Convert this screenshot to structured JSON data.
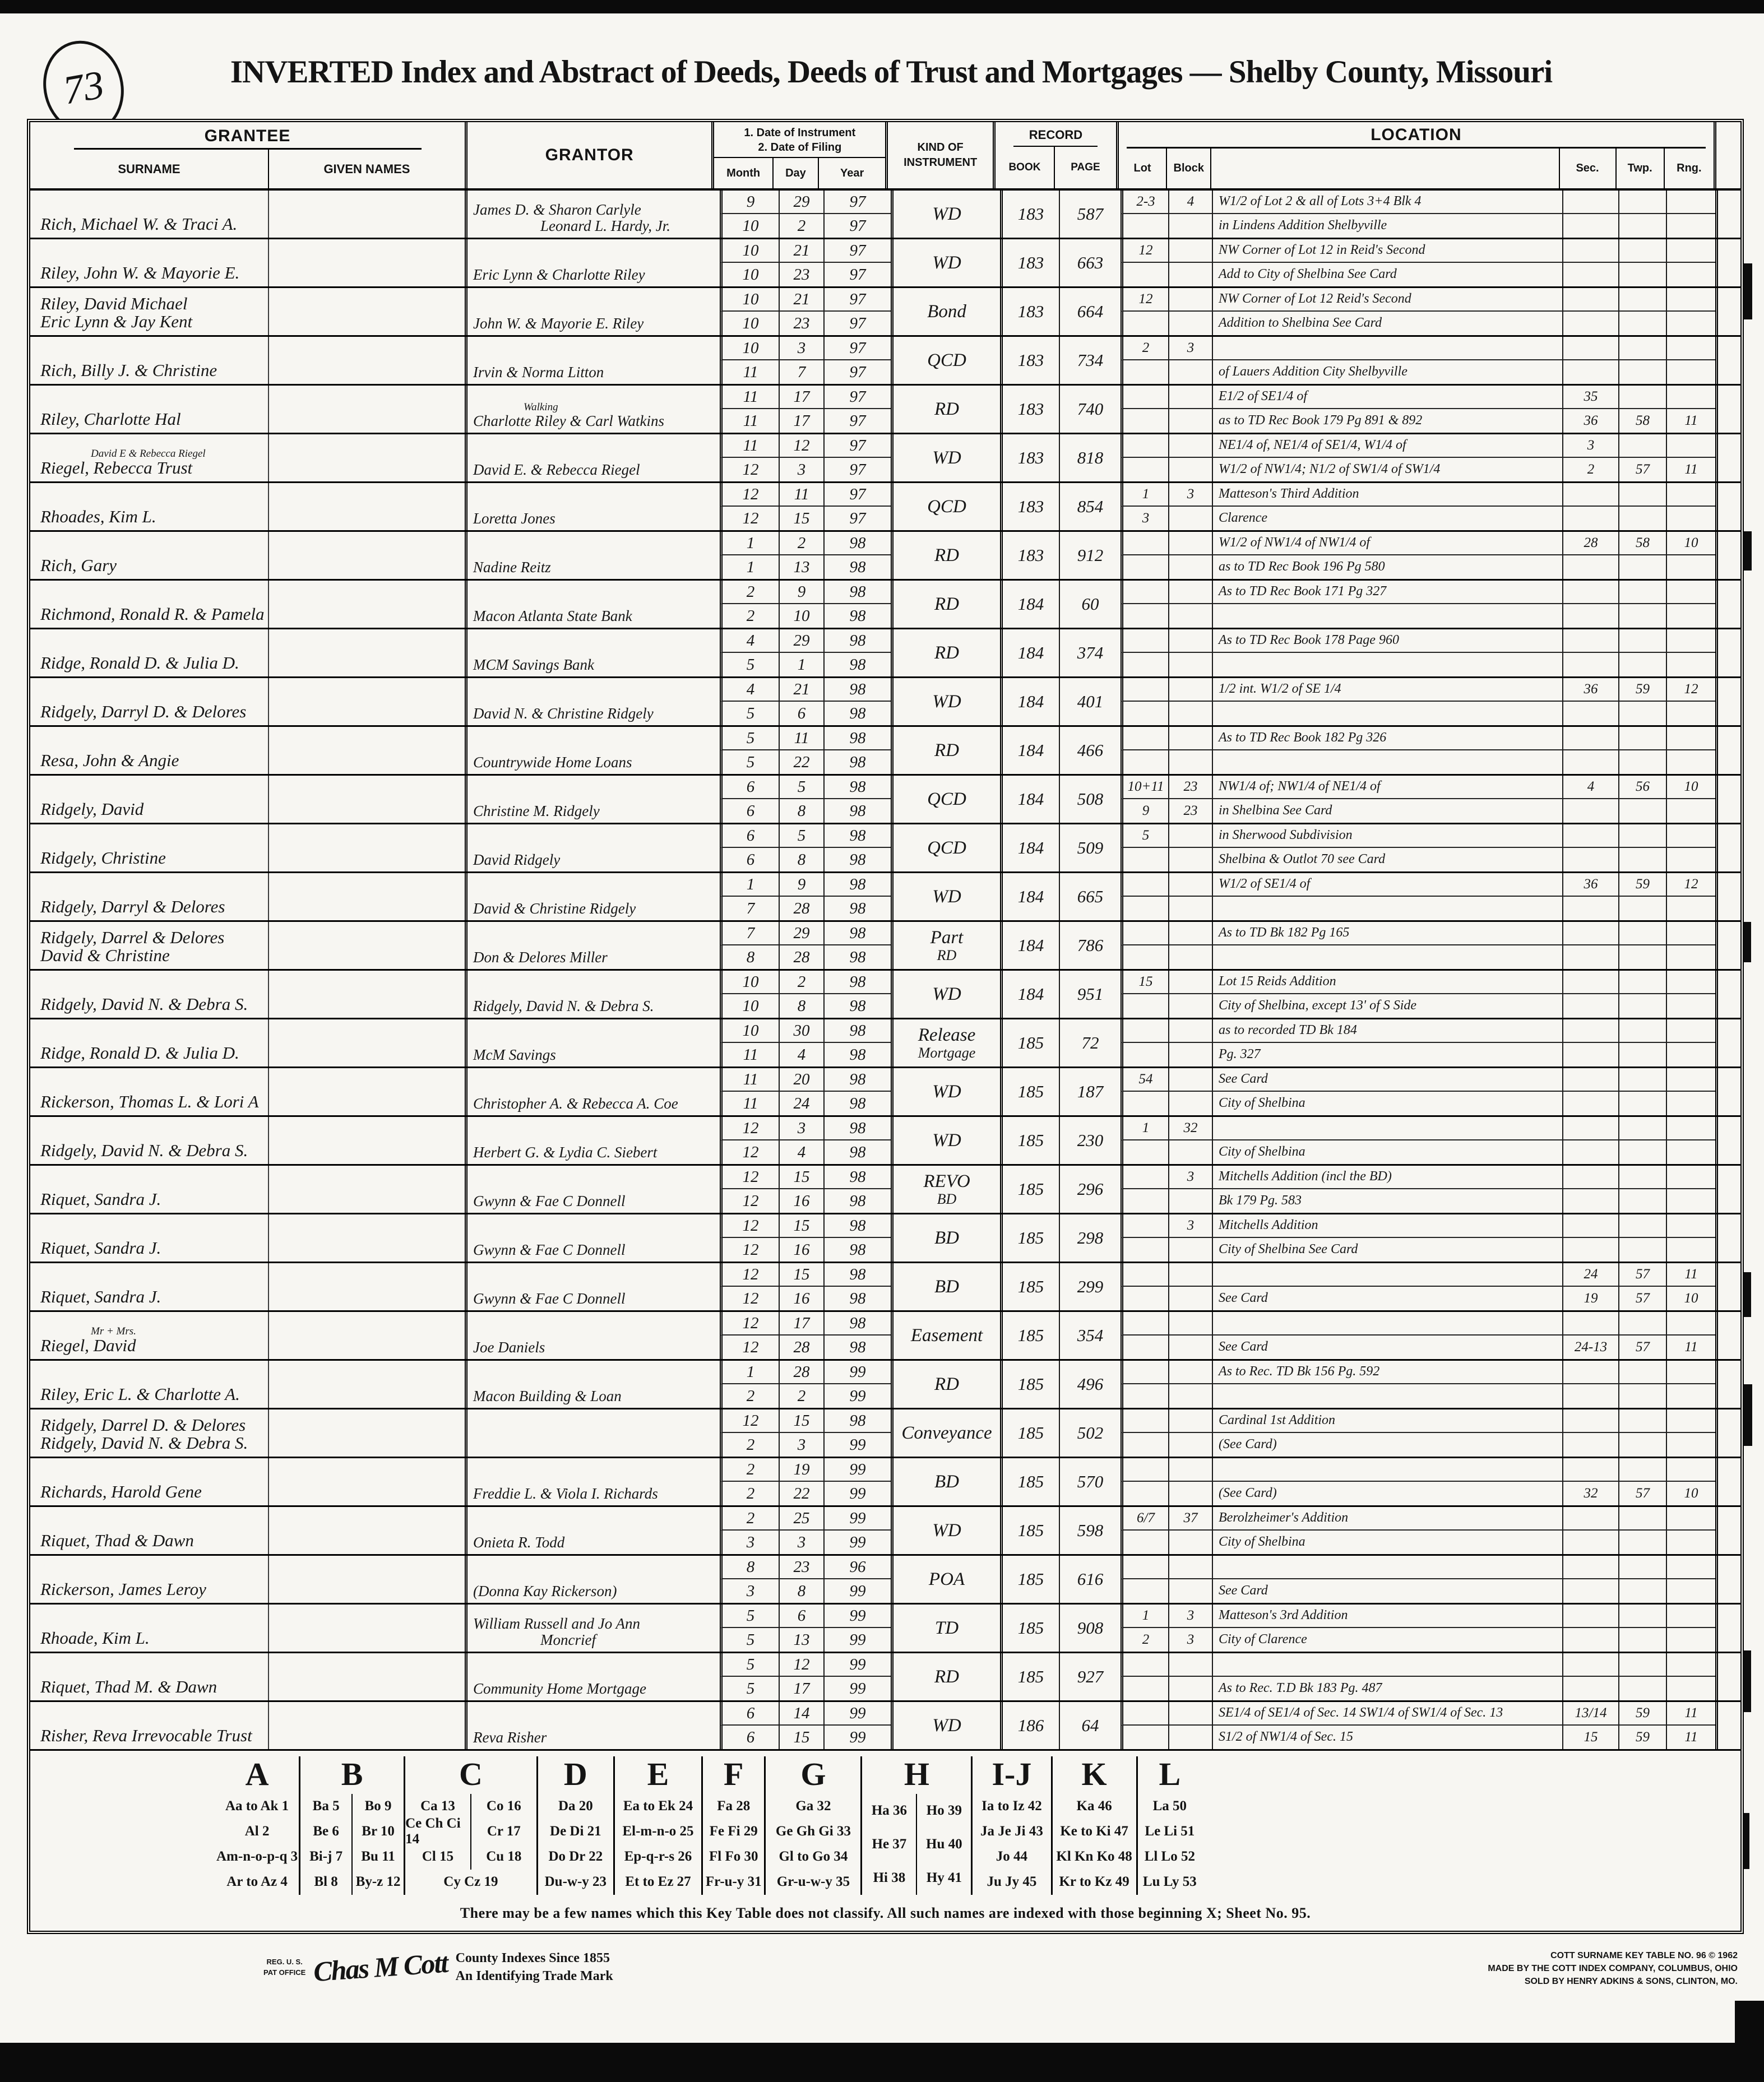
{
  "page": {
    "number": "73",
    "title": "INVERTED Index and Abstract of Deeds, Deeds of Trust and Mortgages — Shelby County, Missouri"
  },
  "headers": {
    "grantee": "GRANTEE",
    "surname": "SURNAME",
    "given_names": "GIVEN NAMES",
    "grantor": "GRANTOR",
    "date1": "1. Date of Instrument",
    "date2": "2. Date of Filing",
    "month": "Month",
    "day": "Day",
    "year": "Year",
    "kind1": "KIND OF",
    "kind2": "INSTRUMENT",
    "record": "RECORD",
    "book": "BOOK",
    "page": "PAGE",
    "location": "LOCATION",
    "lot": "Lot",
    "block": "Block",
    "sec": "Sec.",
    "twp": "Twp.",
    "rng": "Rng."
  },
  "entries": [
    {
      "grantee": "Rich, Michael W. & Traci A.",
      "grantor": "James D. & Sharon Carlyle",
      "grantor2": "Leonard L. Hardy, Jr.",
      "d1": [
        "9",
        "29",
        "97"
      ],
      "d2": [
        "10",
        "2",
        "97"
      ],
      "kind": "WD",
      "book": "183",
      "page": "587",
      "l1": {
        "lot": "2-3",
        "blk": "4",
        "text": "W1/2 of Lot 2 & all of Lots 3+4 Blk 4"
      },
      "l2": {
        "text": "in Lindens Addition Shelbyville"
      }
    },
    {
      "grantee": "Riley, John W. & Mayorie E.",
      "grantor": "Eric Lynn & Charlotte Riley",
      "d1": [
        "10",
        "21",
        "97"
      ],
      "d2": [
        "10",
        "23",
        "97"
      ],
      "kind": "WD",
      "book": "183",
      "page": "663",
      "l1": {
        "lot": "12",
        "text": "NW Corner of Lot 12 in Reid's Second"
      },
      "l2": {
        "text": "Add to City of Shelbina  See Card"
      }
    },
    {
      "grantee": "Riley, David Michael",
      "grantee2": "Eric Lynn & Jay Kent",
      "grantor": "John W. & Mayorie E. Riley",
      "d1": [
        "10",
        "21",
        "97"
      ],
      "d2": [
        "10",
        "23",
        "97"
      ],
      "kind": "Bond",
      "book": "183",
      "page": "664",
      "l1": {
        "lot": "12",
        "text": "NW Corner of Lot 12 Reid's Second"
      },
      "l2": {
        "text": "Addition to Shelbina  See Card"
      }
    },
    {
      "grantee": "Rich, Billy J. & Christine",
      "grantor": "Irvin & Norma Litton",
      "d1": [
        "10",
        "3",
        "97"
      ],
      "d2": [
        "11",
        "7",
        "97"
      ],
      "kind": "QCD",
      "book": "183",
      "page": "734",
      "l1": {
        "lot": "2",
        "blk": "3"
      },
      "l2": {
        "text": "of Lauers Addition City Shelbyville"
      }
    },
    {
      "grantee": "Riley, Charlotte Hal",
      "grantor": "Charlotte Riley & Carl Watkins",
      "grantor_above": "Walking",
      "d1": [
        "11",
        "17",
        "97"
      ],
      "d2": [
        "11",
        "17",
        "97"
      ],
      "kind": "RD",
      "book": "183",
      "page": "740",
      "l1": {
        "text": "E1/2 of SE1/4 of",
        "sec": "35"
      },
      "l2": {
        "text": "as to TD Rec Book 179 Pg 891 & 892",
        "sec": "36",
        "twp": "58",
        "rng": "11"
      }
    },
    {
      "grantee": "Riegel, Rebecca Trust",
      "grantee_above": "David E & Rebecca Riegel",
      "grantor": "David E. & Rebecca Riegel",
      "d1": [
        "11",
        "12",
        "97"
      ],
      "d2": [
        "12",
        "3",
        "97"
      ],
      "kind": "WD",
      "book": "183",
      "page": "818",
      "l1": {
        "text": "NE1/4 of, NE1/4 of SE1/4, W1/4 of",
        "sec": "3"
      },
      "l2": {
        "text": "W1/2 of NW1/4; N1/2 of SW1/4 of SW1/4",
        "sec": "2",
        "twp": "57",
        "rng": "11"
      }
    },
    {
      "grantee": "Rhoades, Kim L.",
      "grantor": "Loretta Jones",
      "d1": [
        "12",
        "11",
        "97"
      ],
      "d2": [
        "12",
        "15",
        "97"
      ],
      "kind": "QCD",
      "book": "183",
      "page": "854",
      "l1": {
        "lot": "1",
        "blk": "3",
        "text": "Matteson's Third Addition"
      },
      "l2": {
        "lot": "3",
        "text": "Clarence"
      }
    },
    {
      "grantee": "Rich, Gary",
      "grantor": "Nadine Reitz",
      "d1": [
        "1",
        "2",
        "98"
      ],
      "d2": [
        "1",
        "13",
        "98"
      ],
      "kind": "RD",
      "book": "183",
      "page": "912",
      "l1": {
        "text": "W1/2 of NW1/4 of NW1/4 of",
        "sec": "28",
        "twp": "58",
        "rng": "10"
      },
      "l2": {
        "text": "as to TD Rec Book 196 Pg 580"
      }
    },
    {
      "grantee": "Richmond, Ronald R. & Pamela",
      "grantor": "Macon Atlanta State Bank",
      "d1": [
        "2",
        "9",
        "98"
      ],
      "d2": [
        "2",
        "10",
        "98"
      ],
      "kind": "RD",
      "book": "184",
      "page": "60",
      "l1": {
        "text": "As to TD Rec Book 171 Pg 327"
      },
      "l2": {}
    },
    {
      "grantee": "Ridge, Ronald D. & Julia D.",
      "grantor": "MCM Savings Bank",
      "d1": [
        "4",
        "29",
        "98"
      ],
      "d2": [
        "5",
        "1",
        "98"
      ],
      "kind": "RD",
      "book": "184",
      "page": "374",
      "l1": {
        "text": "As to TD Rec Book 178 Page 960"
      },
      "l2": {}
    },
    {
      "grantee": "Ridgely, Darryl D. & Delores",
      "grantor": "David N. & Christine Ridgely",
      "d1": [
        "4",
        "21",
        "98"
      ],
      "d2": [
        "5",
        "6",
        "98"
      ],
      "kind": "WD",
      "book": "184",
      "page": "401",
      "l1": {
        "text": "1/2 int. W1/2 of SE 1/4",
        "sec": "36",
        "twp": "59",
        "rng": "12"
      },
      "l2": {}
    },
    {
      "grantee": "Resa, John & Angie",
      "grantor": "Countrywide Home Loans",
      "d1": [
        "5",
        "11",
        "98"
      ],
      "d2": [
        "5",
        "22",
        "98"
      ],
      "kind": "RD",
      "book": "184",
      "page": "466",
      "l1": {
        "text": "As to TD Rec Book 182 Pg 326"
      },
      "l2": {}
    },
    {
      "grantee": "Ridgely, David",
      "grantor": "Christine M. Ridgely",
      "d1": [
        "6",
        "5",
        "98"
      ],
      "d2": [
        "6",
        "8",
        "98"
      ],
      "kind": "QCD",
      "book": "184",
      "page": "508",
      "l1": {
        "lot": "10+11",
        "blk": "23",
        "text": "NW1/4 of; NW1/4 of NE1/4 of",
        "sec": "4",
        "twp": "56",
        "rng": "10"
      },
      "l2": {
        "lot": "9",
        "blk": "23",
        "text": "in Shelbina  See Card"
      }
    },
    {
      "grantee": "Ridgely, Christine",
      "grantor": "David Ridgely",
      "d1": [
        "6",
        "5",
        "98"
      ],
      "d2": [
        "6",
        "8",
        "98"
      ],
      "kind": "QCD",
      "book": "184",
      "page": "509",
      "l1": {
        "lot": "5",
        "text": "in Sherwood Subdivision"
      },
      "l2": {
        "text": "Shelbina & Outlot 70 see Card"
      }
    },
    {
      "grantee": "Ridgely, Darryl & Delores",
      "grantor": "David & Christine Ridgely",
      "d1": [
        "1",
        "9",
        "98"
      ],
      "d2": [
        "7",
        "28",
        "98"
      ],
      "kind": "WD",
      "book": "184",
      "page": "665",
      "l1": {
        "text": "W1/2 of SE1/4 of",
        "sec": "36",
        "twp": "59",
        "rng": "12"
      },
      "l2": {}
    },
    {
      "grantee": "Ridgely, Darrel & Delores",
      "grantee2": "David & Christine",
      "grantor": "Don & Delores Miller",
      "d1": [
        "7",
        "29",
        "98"
      ],
      "d2": [
        "8",
        "28",
        "98"
      ],
      "kind": "Part",
      "kind2": "RD",
      "book": "184",
      "page": "786",
      "l1": {
        "text": "As to TD Bk 182 Pg 165"
      },
      "l2": {}
    },
    {
      "grantee": "Ridgely, David N. & Debra S.",
      "grantor": "Ridgely, David N. & Debra S.",
      "d1": [
        "10",
        "2",
        "98"
      ],
      "d2": [
        "10",
        "8",
        "98"
      ],
      "kind": "WD",
      "book": "184",
      "page": "951",
      "l1": {
        "lot": "15",
        "text": "Lot 15 Reids Addition"
      },
      "l2": {
        "text": "City of Shelbina, except 13' of S Side"
      }
    },
    {
      "grantee": "Ridge, Ronald D. & Julia D.",
      "grantor": "McM Savings",
      "d1": [
        "10",
        "30",
        "98"
      ],
      "d2": [
        "11",
        "4",
        "98"
      ],
      "kind": "Release",
      "kind2": "Mortgage",
      "book": "185",
      "page": "72",
      "l1": {
        "text": "as to recorded TD Bk 184"
      },
      "l2": {
        "text": "              Pg. 327"
      }
    },
    {
      "grantee": "Rickerson, Thomas L. & Lori A",
      "grantor": "Christopher A. & Rebecca A. Coe",
      "d1": [
        "11",
        "20",
        "98"
      ],
      "d2": [
        "11",
        "24",
        "98"
      ],
      "kind": "WD",
      "book": "185",
      "page": "187",
      "l1": {
        "lot": "54",
        "text": "      See Card"
      },
      "l2": {
        "text": "City of Shelbina"
      }
    },
    {
      "grantee": "Ridgely, David N. & Debra S.",
      "grantor": "Herbert G. & Lydia C. Siebert",
      "d1": [
        "12",
        "3",
        "98"
      ],
      "d2": [
        "12",
        "4",
        "98"
      ],
      "kind": "WD",
      "book": "185",
      "page": "230",
      "l1": {
        "lot": "1",
        "blk": "32"
      },
      "l2": {
        "text": "City of Shelbina"
      }
    },
    {
      "grantee": "Riquet, Sandra J.",
      "grantor": "Gwynn & Fae C Donnell",
      "d1": [
        "12",
        "15",
        "98"
      ],
      "d2": [
        "12",
        "16",
        "98"
      ],
      "kind": "REVO",
      "kind2": "BD",
      "book": "185",
      "page": "296",
      "l1": {
        "blk": "3",
        "text": "Mitchells Addition (incl the BD)"
      },
      "l2": {
        "text": "Bk 179 Pg. 583"
      }
    },
    {
      "grantee": "Riquet, Sandra J.",
      "grantor": "Gwynn & Fae C Donnell",
      "d1": [
        "12",
        "15",
        "98"
      ],
      "d2": [
        "12",
        "16",
        "98"
      ],
      "kind": "BD",
      "book": "185",
      "page": "298",
      "l1": {
        "blk": "3",
        "text": "Mitchells Addition"
      },
      "l2": {
        "text": "City of Shelbina  See Card"
      }
    },
    {
      "grantee": "Riquet, Sandra J.",
      "grantor": "Gwynn & Fae C Donnell",
      "d1": [
        "12",
        "15",
        "98"
      ],
      "d2": [
        "12",
        "16",
        "98"
      ],
      "kind": "BD",
      "book": "185",
      "page": "299",
      "l1": {
        "sec": "24",
        "twp": "57",
        "rng": "11"
      },
      "l2": {
        "text": "      See Card",
        "sec": "19",
        "twp": "57",
        "rng": "10"
      }
    },
    {
      "grantee": "Riegel, David",
      "grantee_above": "Mr + Mrs.",
      "grantor": "Joe Daniels",
      "d1": [
        "12",
        "17",
        "98"
      ],
      "d2": [
        "12",
        "28",
        "98"
      ],
      "kind": "Easement",
      "book": "185",
      "page": "354",
      "l1": {},
      "l2": {
        "text": "      See Card",
        "sec": "24-13",
        "twp": "57",
        "rng": "11"
      }
    },
    {
      "grantee": "Riley, Eric L. & Charlotte A.",
      "grantor": "Macon Building & Loan",
      "d1": [
        "1",
        "28",
        "99"
      ],
      "d2": [
        "2",
        "2",
        "99"
      ],
      "kind": "RD",
      "book": "185",
      "page": "496",
      "l1": {
        "text": "As to Rec. TD   Bk 156   Pg. 592"
      },
      "l2": {}
    },
    {
      "grantee": "Ridgely, Darrel D. & Delores",
      "grantee2": "Ridgely, David N. & Debra S.",
      "grantor": "",
      "d1": [
        "12",
        "15",
        "98"
      ],
      "d2": [
        "2",
        "3",
        "99"
      ],
      "kind": "Conveyance",
      "book": "185",
      "page": "502",
      "l1": {
        "text": "Cardinal 1st Addition"
      },
      "l2": {
        "text": "      (See Card)"
      }
    },
    {
      "grantee": "Richards, Harold Gene",
      "grantor": "Freddie L. & Viola I. Richards",
      "d1": [
        "2",
        "19",
        "99"
      ],
      "d2": [
        "2",
        "22",
        "99"
      ],
      "kind": "BD",
      "book": "185",
      "page": "570",
      "l1": {},
      "l2": {
        "text": "      (See Card)",
        "sec": "32",
        "twp": "57",
        "rng": "10"
      }
    },
    {
      "grantee": "Riquet, Thad & Dawn",
      "grantor": "Onieta R. Todd",
      "d1": [
        "2",
        "25",
        "99"
      ],
      "d2": [
        "3",
        "3",
        "99"
      ],
      "kind": "WD",
      "book": "185",
      "page": "598",
      "l1": {
        "lot": "6/7",
        "blk": "37",
        "text": "Berolzheimer's Addition"
      },
      "l2": {
        "text": "City of Shelbina"
      }
    },
    {
      "grantee": "Rickerson, James Leroy",
      "grantor": "(Donna Kay Rickerson)",
      "d1": [
        "8",
        "23",
        "96"
      ],
      "d2": [
        "3",
        "8",
        "99"
      ],
      "kind": "POA",
      "book": "185",
      "page": "616",
      "l1": {},
      "l2": {
        "text": "      See Card"
      }
    },
    {
      "grantee": "Rhoade, Kim L.",
      "grantor": "William Russell and Jo Ann",
      "grantor2": "Moncrief",
      "d1": [
        "5",
        "6",
        "99"
      ],
      "d2": [
        "5",
        "13",
        "99"
      ],
      "kind": "TD",
      "book": "185",
      "page": "908",
      "l1": {
        "lot": "1",
        "blk": "3",
        "text": "Matteson's 3rd Addition"
      },
      "l2": {
        "lot": "2",
        "blk": "3",
        "text": "City of Clarence"
      }
    },
    {
      "grantee": "Riquet, Thad M. & Dawn",
      "grantor": "Community Home Mortgage",
      "d1": [
        "5",
        "12",
        "99"
      ],
      "d2": [
        "5",
        "17",
        "99"
      ],
      "kind": "RD",
      "book": "185",
      "page": "927",
      "l1": {},
      "l2": {
        "text": "As to Rec. T.D   Bk 183   Pg. 487"
      }
    },
    {
      "grantee": "Risher, Reva Irrevocable Trust",
      "grantor": "Reva Risher",
      "d1": [
        "6",
        "14",
        "99"
      ],
      "d2": [
        "6",
        "15",
        "99"
      ],
      "kind": "WD",
      "book": "186",
      "page": "64",
      "l1": {
        "text": "SE1/4 of SE1/4 of Sec. 14   SW1/4 of SW1/4 of Sec. 13",
        "sec": "13/14",
        "twp": "59",
        "rng": "11"
      },
      "l2": {
        "text": "          S1/2 of NW1/4 of Sec. 15",
        "sec": "15",
        "twp": "59",
        "rng": "11"
      }
    }
  ],
  "key_table": {
    "columns": [
      {
        "letter": "A",
        "rows": [
          [
            "Aa to Ak 1"
          ],
          [
            "Al 2"
          ],
          [
            "Am-n-o-p-q 3"
          ],
          [
            "Ar to Az 4"
          ]
        ]
      },
      {
        "letter": "B",
        "rows": [
          [
            "Ba 5",
            "Bo 9"
          ],
          [
            "Be 6",
            "Br 10"
          ],
          [
            "Bi-j 7",
            "Bu 11"
          ],
          [
            "Bl 8",
            "By-z 12"
          ]
        ]
      },
      {
        "letter": "C",
        "rows": [
          [
            "Ca 13",
            "Co 16"
          ],
          [
            "Ce Ch Ci 14",
            "Cr 17"
          ],
          [
            "Cl 15",
            "Cu 18"
          ],
          [
            "Cy Cz 19"
          ]
        ]
      },
      {
        "letter": "D",
        "rows": [
          [
            "Da 20"
          ],
          [
            "De Di 21"
          ],
          [
            "Do Dr 22"
          ],
          [
            "Du-w-y 23"
          ]
        ]
      },
      {
        "letter": "E",
        "rows": [
          [
            "Ea to Ek 24"
          ],
          [
            "El-m-n-o 25"
          ],
          [
            "Ep-q-r-s 26"
          ],
          [
            "Et to Ez 27"
          ]
        ]
      },
      {
        "letter": "F",
        "rows": [
          [
            "Fa 28"
          ],
          [
            "Fe Fi 29"
          ],
          [
            "Fl Fo 30"
          ],
          [
            "Fr-u-y 31"
          ]
        ]
      },
      {
        "letter": "G",
        "rows": [
          [
            "Ga 32"
          ],
          [
            "Ge Gh Gi 33"
          ],
          [
            "Gl to Go 34"
          ],
          [
            "Gr-u-w-y 35"
          ]
        ]
      },
      {
        "letter": "H",
        "rows": [
          [
            "Ha 36",
            "Ho 39"
          ],
          [
            "He 37",
            "Hu 40"
          ],
          [
            "Hi 38",
            "Hy 41"
          ]
        ]
      },
      {
        "letter": "I-J",
        "rows": [
          [
            "Ia to Iz 42"
          ],
          [
            "Ja Je Ji 43"
          ],
          [
            "Jo 44"
          ],
          [
            "Ju Jy 45"
          ]
        ]
      },
      {
        "letter": "K",
        "rows": [
          [
            "Ka 46"
          ],
          [
            "Ke to Ki 47"
          ],
          [
            "Kl Kn Ko 48"
          ],
          [
            "Kr to Kz 49"
          ]
        ]
      },
      {
        "letter": "L",
        "rows": [
          [
            "La 50"
          ],
          [
            "Le Li 51"
          ],
          [
            "Ll Lo 52"
          ],
          [
            "Lu Ly 53"
          ]
        ]
      }
    ]
  },
  "footer": {
    "note": "There may be a few names which this Key Table does not classify.    All such names are indexed with those beginning X; Sheet No. 95.",
    "reg1": "REG. U. S.",
    "reg2": "PAT OFFICE",
    "signature": "Chas M Cott",
    "tm1": "County Indexes Since 1855",
    "tm2": "An Identifying Trade Mark",
    "cott1": "COTT SURNAME KEY TABLE NO. 96 © 1962",
    "cott2": "MADE BY THE COTT INDEX COMPANY, COLUMBUS, OHIO",
    "cott3": "SOLD BY HENRY ADKINS & SONS, CLINTON, MO."
  }
}
